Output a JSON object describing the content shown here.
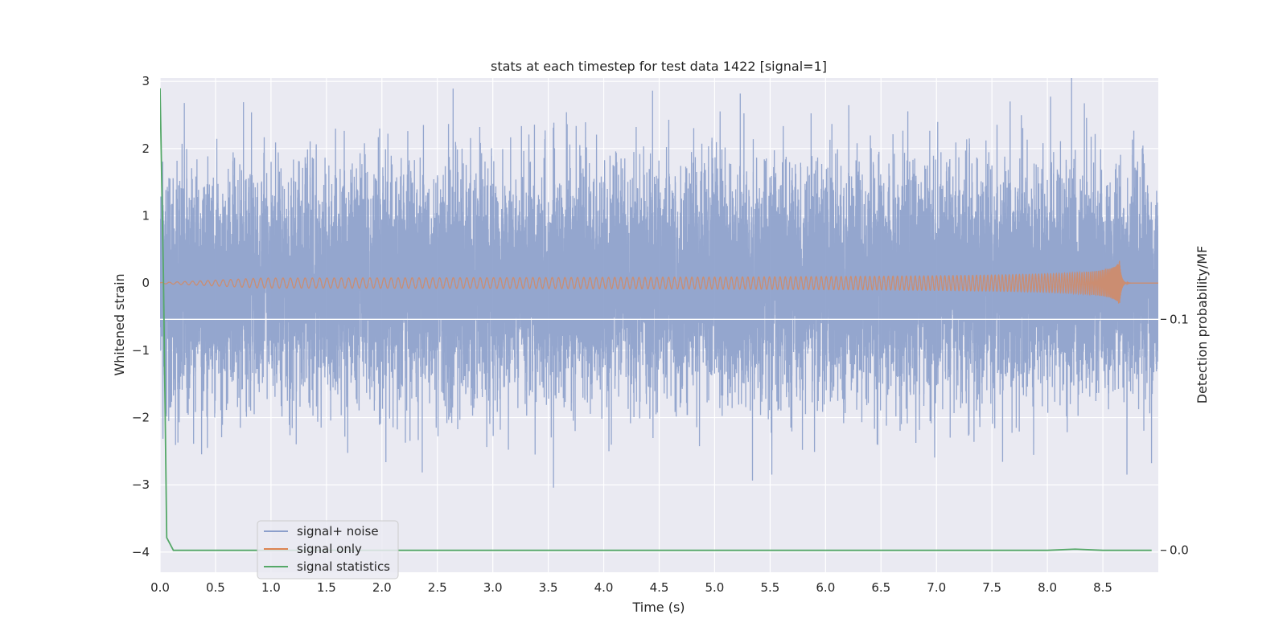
{
  "chart_data": {
    "type": "line",
    "title": "stats at each timestep for test data 1422 [signal=1]",
    "xlabel": "Time (s)",
    "ylabel": "Whitened strain",
    "y2label": "Detection probability/MF",
    "xlim": [
      0,
      9.0
    ],
    "ylim": [
      -4.3,
      3.05
    ],
    "y2lim": [
      -0.0095,
      0.2045
    ],
    "x_ticks": [
      "0.0",
      "0.5",
      "1.0",
      "1.5",
      "2.0",
      "2.5",
      "3.0",
      "3.5",
      "4.0",
      "4.5",
      "5.0",
      "5.5",
      "6.0",
      "6.5",
      "7.0",
      "7.5",
      "8.0",
      "8.5"
    ],
    "y_ticks": [
      "3",
      "2",
      "1",
      "0",
      "−1",
      "−2",
      "−3",
      "−4"
    ],
    "y2_ticks": [
      "0.1",
      "0.0"
    ],
    "grid": true,
    "legend_position": "lower-left",
    "colors": {
      "noise": "#8c9fcb",
      "signal": "#dd8452",
      "stats": "#55a868",
      "plot_bg": "#eaeaf2",
      "grid": "#ffffff"
    },
    "series": [
      {
        "name": "signal+ noise",
        "axis": "left",
        "kind": "noise",
        "sample_rate_hz": 2048,
        "std": 0.78,
        "x_range": [
          0,
          9.0
        ]
      },
      {
        "name": "signal only",
        "axis": "left",
        "kind": "chirp",
        "merger_time": 8.65,
        "peak_amplitude": 0.33,
        "x_range": [
          0,
          9.0
        ]
      },
      {
        "name": "signal statistics",
        "axis": "right",
        "kind": "line",
        "x": [
          0.0,
          0.03,
          0.06,
          0.12,
          1.0,
          2.0,
          3.0,
          4.0,
          5.0,
          6.0,
          7.0,
          8.0,
          8.25,
          8.5,
          8.94
        ],
        "y": [
          0.2,
          0.12,
          0.0055,
          0.0,
          0.0,
          0.0,
          0.0,
          0.0,
          0.0,
          0.0,
          0.0,
          0.0,
          0.0005,
          0.0,
          0.0
        ]
      }
    ]
  }
}
